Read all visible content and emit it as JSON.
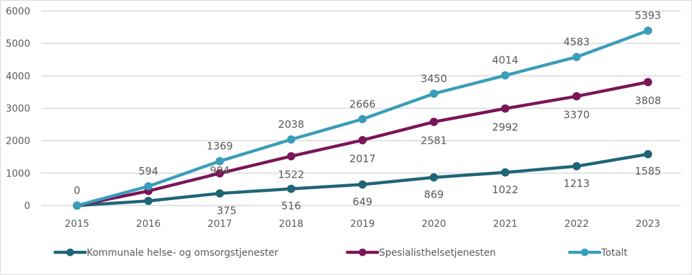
{
  "chart_data": {
    "type": "line",
    "title": "",
    "xlabel": "",
    "ylabel": "",
    "x": [
      "2015",
      "2016",
      "2017",
      "2018",
      "2019",
      "2020",
      "2021",
      "2022",
      "2023"
    ],
    "ylim": [
      0,
      6000
    ],
    "yticks": [
      0,
      1000,
      2000,
      3000,
      4000,
      5000,
      6000
    ],
    "grid": true,
    "legend": "bottom",
    "series": [
      {
        "name": "Kommunale helse- og omsorgstjenester",
        "color": "#1F6577",
        "values": [
          0,
          144,
          375,
          516,
          649,
          869,
          1022,
          1213,
          1585
        ],
        "labels": [
          "",
          "",
          "375",
          "516",
          "649",
          "869",
          "1022",
          "1213",
          "1585"
        ]
      },
      {
        "name": "Spesialisthelsetjenesten",
        "color": "#7B1459",
        "values": [
          0,
          450,
          994,
          1522,
          2017,
          2581,
          2992,
          3370,
          3808
        ],
        "labels": [
          "",
          "",
          "994",
          "1522",
          "2017",
          "2581",
          "2992",
          "3370",
          "3808"
        ]
      },
      {
        "name": "Totalt",
        "color": "#3A9DBA",
        "values": [
          0,
          594,
          1369,
          2038,
          2666,
          3450,
          4014,
          4583,
          5393
        ],
        "labels": [
          "0",
          "594",
          "1369",
          "2038",
          "2666",
          "3450",
          "4014",
          "4583",
          "5393"
        ]
      }
    ]
  }
}
